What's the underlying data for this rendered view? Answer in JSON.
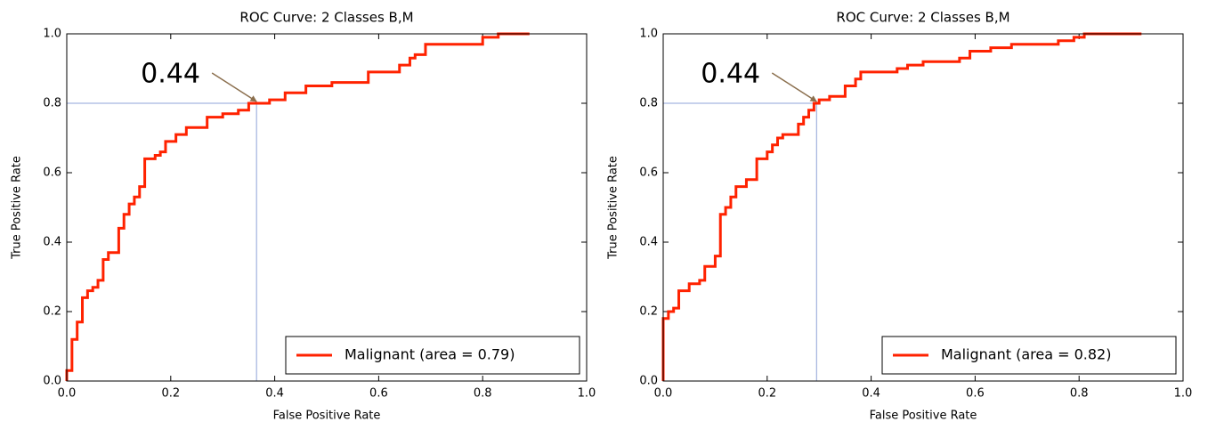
{
  "chart_data": [
    {
      "type": "line",
      "title": "ROC Curve: 2 Classes B,M",
      "x_label": "False Positive Rate",
      "y_label": "True Positive Rate",
      "xlim": [
        0,
        1
      ],
      "ylim": [
        0,
        1
      ],
      "xticks": [
        {
          "value": 0,
          "label": "0.0"
        },
        0.2,
        0.4,
        0.6,
        0.8,
        {
          "value": 1,
          "label": "1.0"
        }
      ],
      "yticks": [
        {
          "value": 0,
          "label": "0.0"
        },
        0.2,
        0.4,
        0.6,
        0.8,
        {
          "value": 1,
          "label": "1.0"
        }
      ],
      "legend": "lower right",
      "step": true,
      "annotation": {
        "text": "0.44",
        "x": 0.365,
        "y": 0.8,
        "guide_color": "#8fa3d8",
        "arrow_color": "#8b6f4e"
      },
      "x": [
        0,
        0,
        0.01,
        0.01,
        0.02,
        0.02,
        0.03,
        0.03,
        0.04,
        0.04,
        0.05,
        0.05,
        0.06,
        0.06,
        0.07,
        0.07,
        0.08,
        0.08,
        0.1,
        0.1,
        0.11,
        0.11,
        0.12,
        0.12,
        0.13,
        0.13,
        0.14,
        0.14,
        0.15,
        0.15,
        0.17,
        0.17,
        0.18,
        0.18,
        0.19,
        0.19,
        0.21,
        0.21,
        0.23,
        0.23,
        0.27,
        0.27,
        0.3,
        0.3,
        0.33,
        0.33,
        0.35,
        0.35,
        0.39,
        0.39,
        0.42,
        0.42,
        0.46,
        0.46,
        0.51,
        0.51,
        0.58,
        0.58,
        0.64,
        0.64,
        0.66,
        0.66,
        0.67,
        0.67,
        0.69,
        0.69,
        0.8,
        0.8,
        0.83,
        0.83,
        0.89
      ],
      "series": [
        {
          "name": "Malignant (area = 0.79)",
          "color": "#ff2200",
          "values": [
            0,
            0.03,
            0.03,
            0.12,
            0.12,
            0.17,
            0.17,
            0.24,
            0.24,
            0.26,
            0.26,
            0.27,
            0.27,
            0.29,
            0.29,
            0.35,
            0.35,
            0.37,
            0.37,
            0.44,
            0.44,
            0.48,
            0.48,
            0.51,
            0.51,
            0.53,
            0.53,
            0.56,
            0.56,
            0.64,
            0.64,
            0.65,
            0.65,
            0.66,
            0.66,
            0.69,
            0.69,
            0.71,
            0.71,
            0.73,
            0.73,
            0.76,
            0.76,
            0.77,
            0.77,
            0.78,
            0.78,
            0.8,
            0.8,
            0.81,
            0.81,
            0.83,
            0.83,
            0.85,
            0.85,
            0.86,
            0.86,
            0.89,
            0.89,
            0.91,
            0.91,
            0.93,
            0.93,
            0.94,
            0.94,
            0.97,
            0.97,
            0.99,
            0.99,
            1,
            1
          ]
        }
      ]
    },
    {
      "type": "line",
      "title": "ROC Curve: 2 Classes B,M",
      "x_label": "False Positive Rate",
      "y_label": "True Positive Rate",
      "xlim": [
        0,
        1
      ],
      "ylim": [
        0,
        1
      ],
      "xticks": [
        {
          "value": 0,
          "label": "0.0"
        },
        0.2,
        0.4,
        0.6,
        0.8,
        {
          "value": 1,
          "label": "1.0"
        }
      ],
      "yticks": [
        {
          "value": 0,
          "label": "0.0"
        },
        0.2,
        0.4,
        0.6,
        0.8,
        {
          "value": 1,
          "label": "1.0"
        }
      ],
      "legend": "lower right",
      "step": true,
      "annotation": {
        "text": "0.44",
        "x": 0.295,
        "y": 0.8,
        "guide_color": "#8fa3d8",
        "arrow_color": "#8b6f4e"
      },
      "x": [
        0,
        0,
        0.01,
        0.01,
        0.02,
        0.02,
        0.03,
        0.03,
        0.05,
        0.05,
        0.07,
        0.07,
        0.08,
        0.08,
        0.1,
        0.1,
        0.11,
        0.11,
        0.12,
        0.12,
        0.13,
        0.13,
        0.14,
        0.14,
        0.16,
        0.16,
        0.18,
        0.18,
        0.2,
        0.2,
        0.21,
        0.21,
        0.22,
        0.22,
        0.23,
        0.23,
        0.26,
        0.26,
        0.27,
        0.27,
        0.28,
        0.28,
        0.29,
        0.29,
        0.3,
        0.3,
        0.32,
        0.32,
        0.35,
        0.35,
        0.37,
        0.37,
        0.38,
        0.38,
        0.45,
        0.45,
        0.47,
        0.47,
        0.5,
        0.5,
        0.57,
        0.57,
        0.59,
        0.59,
        0.63,
        0.63,
        0.67,
        0.67,
        0.76,
        0.76,
        0.79,
        0.79,
        0.81,
        0.81,
        0.92
      ],
      "series": [
        {
          "name": "Malignant (area = 0.82)",
          "color": "#ff2200",
          "values": [
            0,
            0.18,
            0.18,
            0.2,
            0.2,
            0.21,
            0.21,
            0.26,
            0.26,
            0.28,
            0.28,
            0.29,
            0.29,
            0.33,
            0.33,
            0.36,
            0.36,
            0.48,
            0.48,
            0.5,
            0.5,
            0.53,
            0.53,
            0.56,
            0.56,
            0.58,
            0.58,
            0.64,
            0.64,
            0.66,
            0.66,
            0.68,
            0.68,
            0.7,
            0.7,
            0.71,
            0.71,
            0.74,
            0.74,
            0.76,
            0.76,
            0.78,
            0.78,
            0.8,
            0.8,
            0.81,
            0.81,
            0.82,
            0.82,
            0.85,
            0.85,
            0.87,
            0.87,
            0.89,
            0.89,
            0.9,
            0.9,
            0.91,
            0.91,
            0.92,
            0.92,
            0.93,
            0.93,
            0.95,
            0.95,
            0.96,
            0.96,
            0.97,
            0.97,
            0.98,
            0.98,
            0.99,
            0.99,
            1,
            1
          ]
        }
      ]
    }
  ]
}
